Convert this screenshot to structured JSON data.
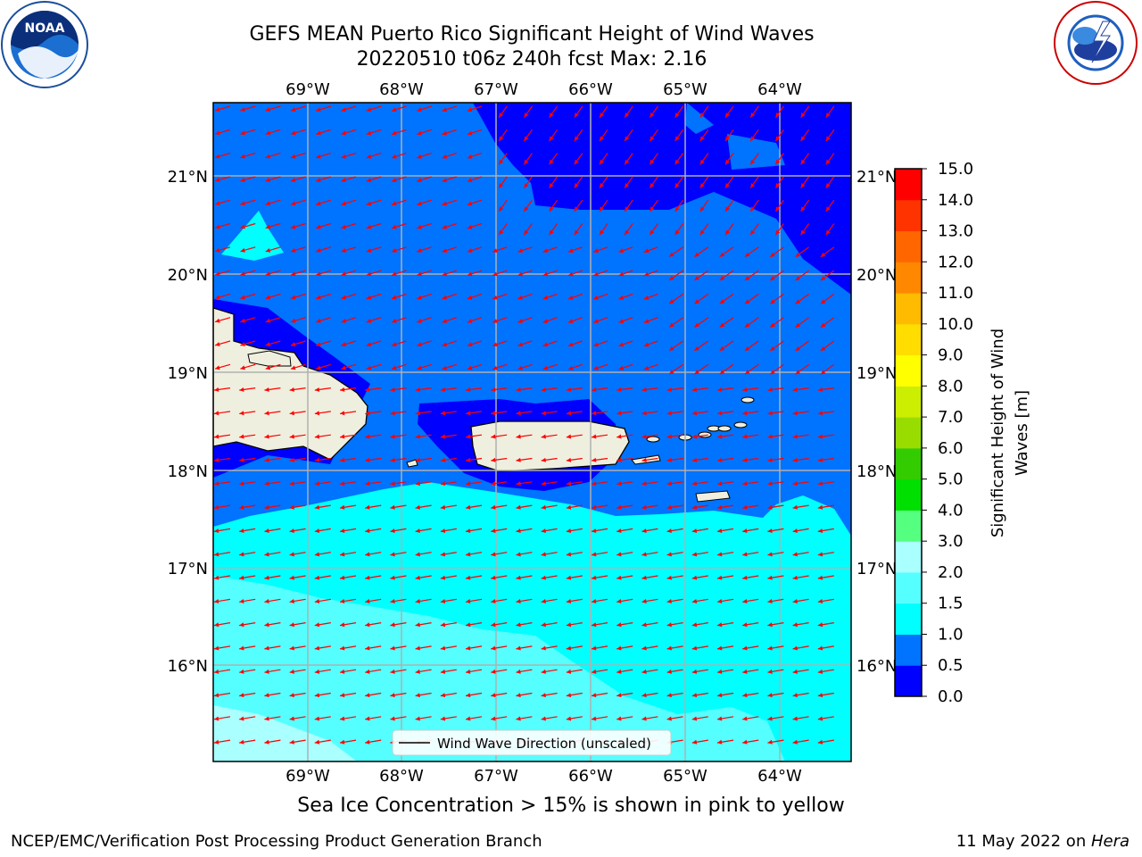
{
  "title_line1": "GEFS MEAN Puerto Rico Significant Height of Wind Waves",
  "title_line2": "20220510 t06z 240h fcst   Max: 2.16",
  "lon_labels": [
    "69°W",
    "68°W",
    "67°W",
    "66°W",
    "65°W",
    "64°W"
  ],
  "lat_labels": [
    "21°N",
    "20°N",
    "19°N",
    "18°N",
    "17°N",
    "16°N"
  ],
  "colorbar": {
    "label_line1": "Significant Height of Wind",
    "label_line2": "Waves [m]",
    "ticks": [
      "0.0",
      "0.5",
      "1.0",
      "1.5",
      "2.0",
      "3.0",
      "4.0",
      "5.0",
      "6.0",
      "7.0",
      "8.0",
      "9.0",
      "10.0",
      "11.0",
      "12.0",
      "13.0",
      "14.0",
      "15.0"
    ],
    "colors": [
      "#0000ff",
      "#0073ff",
      "#00ffff",
      "#55ffff",
      "#aaffff",
      "#55ff7f",
      "#00e000",
      "#33cc00",
      "#99dd00",
      "#ccee00",
      "#ffff00",
      "#ffdd00",
      "#ffbb00",
      "#ff8800",
      "#ff6600",
      "#ff3300",
      "#ff0000"
    ]
  },
  "legend_label": "Wind Wave Direction (unscaled)",
  "note": "Sea Ice Concentration > 15% is shown in pink to yellow",
  "footer_left": "NCEP/EMC/Verification Post Processing Product Generation Branch",
  "footer_date": "11 May 2022 on ",
  "footer_machine": "Hera",
  "logos": {
    "left": "NOAA",
    "right": "NATIONAL WEATHER SERVICE"
  },
  "colors": {
    "land": "#efefdf",
    "arrow": "#ff0000",
    "grid": "#b0b0b0"
  }
}
